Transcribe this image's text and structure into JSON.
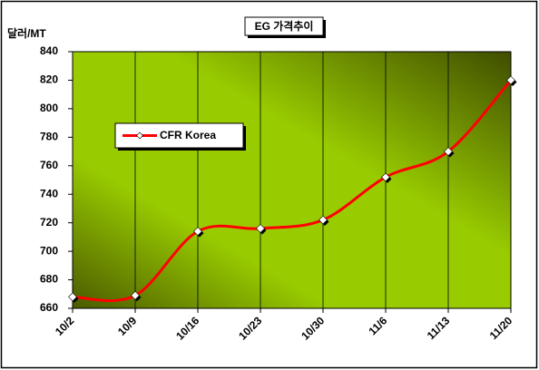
{
  "chart_data": {
    "type": "line",
    "title": "EG 가격추이",
    "y_label": "달러/MT",
    "categories": [
      "10/2",
      "10/9",
      "10/16",
      "10/23",
      "10/30",
      "11/6",
      "11/13",
      "11/20"
    ],
    "series": [
      {
        "name": "CFR Korea",
        "color": "#ff0000",
        "values": [
          668,
          669,
          714,
          716,
          722,
          752,
          770,
          820
        ]
      }
    ],
    "ylim": [
      660,
      840
    ],
    "yticks": [
      660,
      680,
      700,
      720,
      740,
      760,
      780,
      800,
      820,
      840
    ],
    "xgrid": true,
    "smooth": true,
    "legend": "upper left"
  }
}
